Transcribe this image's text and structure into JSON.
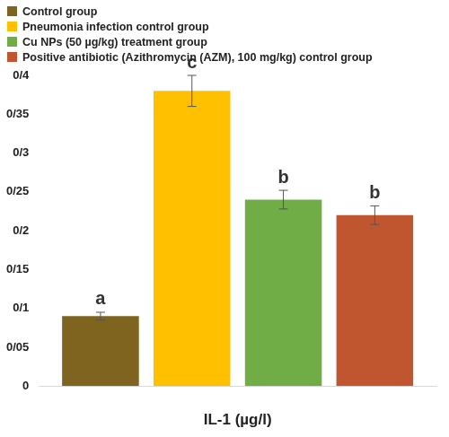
{
  "chart_data": {
    "type": "bar",
    "x_label": "IL-1 (µg/l)",
    "categories": [
      null
    ],
    "series": [
      {
        "name": "Control group",
        "color": "#7f6420",
        "values": [
          0.09
        ],
        "errors": [
          0.005
        ],
        "annotations": [
          "a"
        ]
      },
      {
        "name": "Pneumonia infection control group",
        "color": "#ffc000",
        "values": [
          0.38
        ],
        "errors": [
          0.02
        ],
        "annotations": [
          "c"
        ]
      },
      {
        "name": "Cu NPs (50 µg/kg) treatment group",
        "color": "#70ad47",
        "values": [
          0.24
        ],
        "errors": [
          0.012
        ],
        "annotations": [
          "b"
        ]
      },
      {
        "name": "Positive antibiotic (Azithromycin (AZM), 100 mg/kg) control group",
        "color": "#c0562f",
        "values": [
          0.22
        ],
        "errors": [
          0.012
        ],
        "annotations": [
          "b"
        ]
      }
    ],
    "ylim": [
      0,
      0.4
    ],
    "yticks": [
      0,
      {
        "value": 0.05,
        "label": "0/05"
      },
      {
        "value": 0.1,
        "label": "0/1"
      },
      {
        "value": 0.15,
        "label": "0/15"
      },
      {
        "value": 0.2,
        "label": "0/2"
      },
      {
        "value": 0.25,
        "label": "0/25"
      },
      {
        "value": 0.3,
        "label": "0/3"
      },
      {
        "value": 0.35,
        "label": "0/35"
      },
      {
        "value": 0.4,
        "label": "0/4"
      }
    ],
    "grid": false,
    "legend": "top-left"
  }
}
